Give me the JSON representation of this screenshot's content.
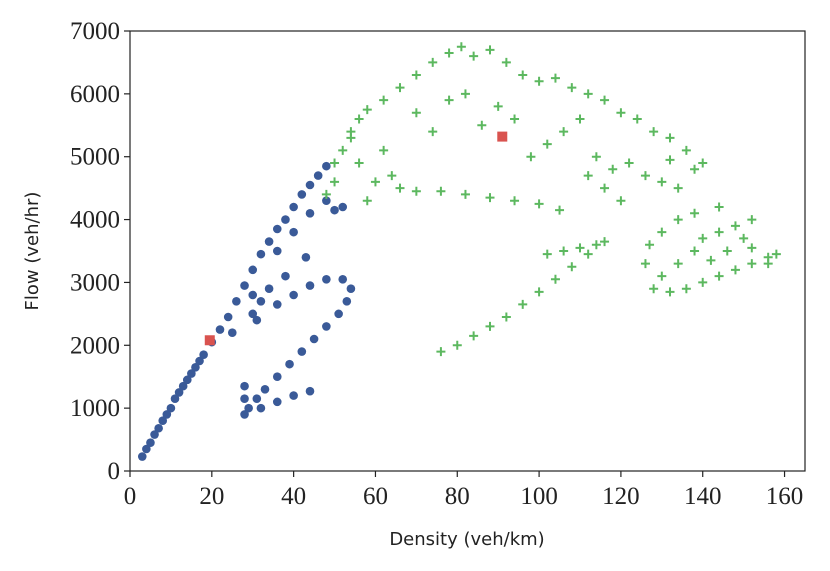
{
  "chart_data": {
    "type": "scatter",
    "x_label": "Density (veh/km)",
    "y_label": "Flow (veh/hr)",
    "xlim": [
      0,
      165
    ],
    "ylim": [
      0,
      7000
    ],
    "xticks": [
      0,
      20,
      40,
      60,
      80,
      100,
      120,
      140,
      160
    ],
    "yticks": [
      0,
      1000,
      2000,
      3000,
      4000,
      5000,
      6000,
      7000
    ],
    "series": [
      {
        "color": "#3a5a98",
        "marker": "circle",
        "x": [
          3,
          4,
          5,
          6,
          7,
          8,
          9,
          10,
          11,
          12,
          13,
          14,
          15,
          16,
          17,
          18,
          20,
          22,
          24,
          26,
          28,
          30,
          32,
          34,
          36,
          38,
          40,
          42,
          44,
          46,
          48,
          36,
          40,
          44,
          48,
          50,
          52,
          43,
          30,
          32,
          36,
          40,
          44,
          48,
          52,
          54,
          53,
          51,
          48,
          45,
          42,
          39,
          36,
          33,
          31,
          29,
          28,
          28,
          28,
          32,
          36,
          40,
          44,
          25,
          30,
          31,
          34,
          38
        ],
        "values": [
          230,
          350,
          450,
          580,
          680,
          800,
          900,
          1000,
          1150,
          1250,
          1350,
          1450,
          1550,
          1650,
          1750,
          1850,
          2050,
          2250,
          2450,
          2700,
          2950,
          3200,
          3450,
          3650,
          3850,
          4000,
          4200,
          4400,
          4550,
          4700,
          4850,
          3500,
          3800,
          4100,
          4300,
          4150,
          4200,
          3400,
          2800,
          2700,
          2650,
          2800,
          2950,
          3050,
          3050,
          2900,
          2700,
          2500,
          2300,
          2100,
          1900,
          1700,
          1500,
          1300,
          1150,
          1000,
          900,
          1150,
          1350,
          1000,
          1100,
          1200,
          1270,
          2200,
          2500,
          2400,
          2900,
          3100
        ]
      },
      {
        "color": "#5cb85f",
        "marker": "plus",
        "x": [
          50,
          52,
          54,
          56,
          58,
          62,
          66,
          70,
          74,
          78,
          81,
          84,
          88,
          92,
          96,
          100,
          104,
          108,
          112,
          116,
          120,
          124,
          128,
          132,
          136,
          140,
          138,
          132,
          70,
          74,
          78,
          82,
          86,
          90,
          94,
          98,
          102,
          106,
          110,
          114,
          118,
          122,
          126,
          130,
          134,
          120,
          116,
          112,
          62,
          64,
          66,
          70,
          76,
          82,
          88,
          94,
          100,
          105,
          140,
          144,
          148,
          152,
          150,
          146,
          142,
          138,
          134,
          130,
          128,
          132,
          136,
          140,
          144,
          148,
          152,
          156,
          158,
          156,
          152,
          126,
          127,
          130,
          134,
          138,
          144,
          76,
          80,
          84,
          88,
          92,
          96,
          100,
          104,
          108,
          112,
          116,
          114,
          110,
          106,
          102,
          48,
          50,
          54,
          56,
          58,
          60
        ],
        "values": [
          4900,
          5100,
          5400,
          5600,
          5750,
          5900,
          6100,
          6300,
          6500,
          6650,
          6750,
          6600,
          6700,
          6500,
          6300,
          6200,
          6250,
          6100,
          6000,
          5900,
          5700,
          5600,
          5400,
          5300,
          5100,
          4900,
          4800,
          4950,
          5700,
          5400,
          5900,
          6000,
          5500,
          5800,
          5600,
          5000,
          5200,
          5400,
          5600,
          5000,
          4800,
          4900,
          4700,
          4600,
          4500,
          4300,
          4500,
          4700,
          5100,
          4700,
          4500,
          4450,
          4450,
          4400,
          4350,
          4300,
          4250,
          4150,
          3700,
          3800,
          3900,
          4000,
          3700,
          3500,
          3350,
          3500,
          3300,
          3100,
          2900,
          2850,
          2900,
          3000,
          3100,
          3200,
          3300,
          3400,
          3450,
          3300,
          3550,
          3300,
          3600,
          3800,
          4000,
          4100,
          4200,
          1900,
          2000,
          2150,
          2300,
          2450,
          2650,
          2850,
          3050,
          3250,
          3450,
          3650,
          3600,
          3550,
          3500,
          3450,
          4400,
          4600,
          5300,
          4900,
          4300,
          4600
        ]
      },
      {
        "color": "#d9534f",
        "marker": "square",
        "x": [
          19.5,
          91
        ],
        "values": [
          2080,
          5320
        ]
      }
    ]
  }
}
